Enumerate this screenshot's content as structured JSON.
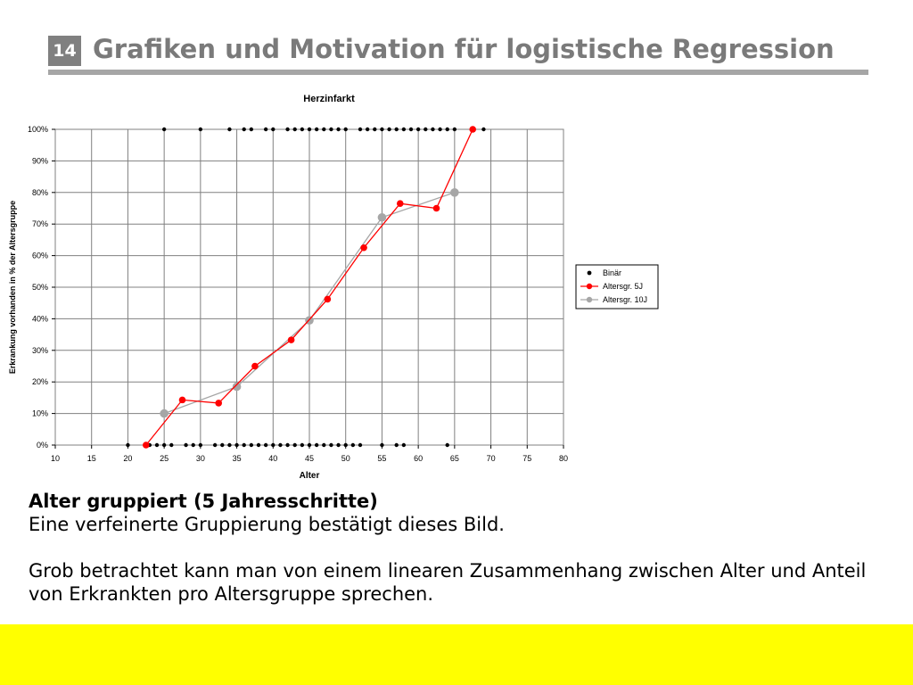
{
  "slide": {
    "number": "14",
    "title": "Grafiken und Motivation für logistische Regression",
    "footer_color": "#ffff00"
  },
  "text": {
    "heading": "Alter gruppiert (5 Jahresschritte)",
    "line1": "Eine verfeinerte Gruppierung bestätigt dieses Bild.",
    "paragraph": "Grob betrachtet kann man von einem linearen Zusammenhang zwischen Alter und Anteil von Erkrankten pro Altersgruppe sprechen."
  },
  "chart_data": {
    "type": "scatter",
    "title": "Herzinfarkt",
    "xlabel": "Alter",
    "ylabel": "Erkrankung vorhanden in % der Altersgruppe",
    "xlim": [
      10,
      80
    ],
    "ylim": [
      0,
      100
    ],
    "x_ticks": [
      "10",
      "15",
      "20",
      "25",
      "30",
      "35",
      "40",
      "45",
      "50",
      "55",
      "60",
      "65",
      "70",
      "75",
      "80"
    ],
    "y_ticks": [
      "0%",
      "10%",
      "20%",
      "30%",
      "40%",
      "50%",
      "60%",
      "70%",
      "80%",
      "90%",
      "100%"
    ],
    "grid": "vertical and horizontal",
    "legend": "right",
    "series": [
      {
        "name": "Binär",
        "color": "#000000",
        "style": "markers",
        "points": [
          [
            20,
            0
          ],
          [
            23,
            0
          ],
          [
            24,
            0
          ],
          [
            25,
            0
          ],
          [
            26,
            0
          ],
          [
            28,
            0
          ],
          [
            29,
            0
          ],
          [
            30,
            0
          ],
          [
            32,
            0
          ],
          [
            33,
            0
          ],
          [
            34,
            0
          ],
          [
            35,
            0
          ],
          [
            36,
            0
          ],
          [
            37,
            0
          ],
          [
            38,
            0
          ],
          [
            39,
            0
          ],
          [
            40,
            0
          ],
          [
            41,
            0
          ],
          [
            42,
            0
          ],
          [
            43,
            0
          ],
          [
            44,
            0
          ],
          [
            45,
            0
          ],
          [
            46,
            0
          ],
          [
            47,
            0
          ],
          [
            48,
            0
          ],
          [
            49,
            0
          ],
          [
            50,
            0
          ],
          [
            51,
            0
          ],
          [
            52,
            0
          ],
          [
            55,
            0
          ],
          [
            57,
            0
          ],
          [
            58,
            0
          ],
          [
            64,
            0
          ],
          [
            25,
            100
          ],
          [
            30,
            100
          ],
          [
            34,
            100
          ],
          [
            36,
            100
          ],
          [
            37,
            100
          ],
          [
            39,
            100
          ],
          [
            40,
            100
          ],
          [
            42,
            100
          ],
          [
            43,
            100
          ],
          [
            44,
            100
          ],
          [
            45,
            100
          ],
          [
            46,
            100
          ],
          [
            47,
            100
          ],
          [
            48,
            100
          ],
          [
            49,
            100
          ],
          [
            50,
            100
          ],
          [
            52,
            100
          ],
          [
            53,
            100
          ],
          [
            54,
            100
          ],
          [
            55,
            100
          ],
          [
            56,
            100
          ],
          [
            57,
            100
          ],
          [
            58,
            100
          ],
          [
            59,
            100
          ],
          [
            60,
            100
          ],
          [
            61,
            100
          ],
          [
            62,
            100
          ],
          [
            63,
            100
          ],
          [
            64,
            100
          ],
          [
            65,
            100
          ],
          [
            69,
            100
          ]
        ]
      },
      {
        "name": "Altersgr. 5J",
        "color": "#ff0000",
        "style": "line-markers",
        "points": [
          [
            22.5,
            0
          ],
          [
            27.5,
            14.3
          ],
          [
            32.5,
            13.3
          ],
          [
            37.5,
            25
          ],
          [
            42.5,
            33.3
          ],
          [
            47.5,
            46.2
          ],
          [
            52.5,
            62.5
          ],
          [
            57.5,
            76.5
          ],
          [
            62.5,
            75
          ],
          [
            67.5,
            100
          ]
        ]
      },
      {
        "name": "Altersgr. 10J",
        "color": "#a6a6a6",
        "style": "line-markers",
        "points": [
          [
            25,
            10
          ],
          [
            35,
            18.5
          ],
          [
            45,
            39.5
          ],
          [
            55,
            72.1
          ],
          [
            65,
            80
          ]
        ]
      }
    ]
  }
}
